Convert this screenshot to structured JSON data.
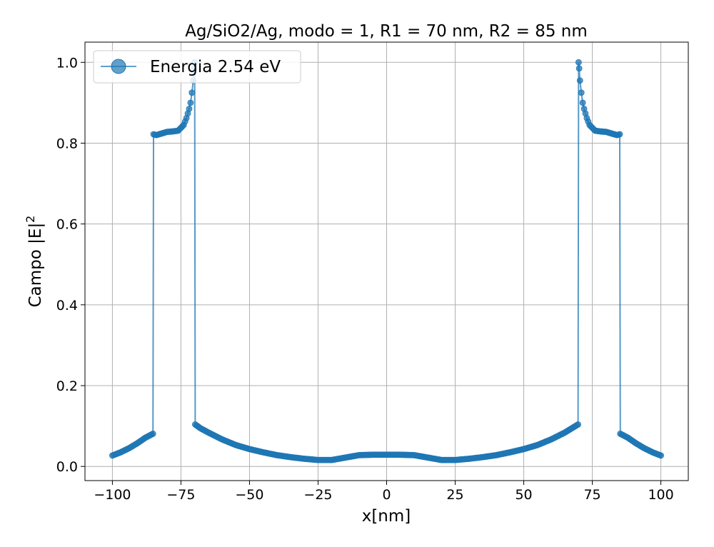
{
  "chart_data": {
    "type": "line",
    "title": "Ag/SiO2/Ag, modo = 1, R1 = 70 nm, R2 = 85 nm",
    "xlabel": "x[nm]",
    "ylabel": "Campo |E|",
    "ylabel_superscript": "2",
    "xlim": [
      -110,
      110
    ],
    "ylim": [
      -0.035,
      1.05
    ],
    "xticks": [
      -100,
      -75,
      -50,
      -25,
      0,
      25,
      50,
      75,
      100
    ],
    "xtick_labels": [
      "−100",
      "−75",
      "−50",
      "−25",
      "0",
      "25",
      "50",
      "75",
      "100"
    ],
    "yticks": [
      0.0,
      0.2,
      0.4,
      0.6,
      0.8,
      1.0
    ],
    "ytick_labels": [
      "0.0",
      "0.2",
      "0.4",
      "0.6",
      "0.8",
      "1.0"
    ],
    "grid": true,
    "legend_position": "top-left",
    "series": [
      {
        "name": "Energia 2.54 eV",
        "color": "#1f77b4",
        "marker": "circle",
        "x": [
          -100,
          -97,
          -94,
          -91,
          -88,
          -85.2,
          -85,
          -84,
          -82,
          -80,
          -78,
          -76,
          -74,
          -73,
          -72,
          -71.5,
          -71,
          -70.5,
          -70.2,
          -70,
          -69.8,
          -68,
          -65,
          -60,
          -55,
          -50,
          -45,
          -40,
          -35,
          -30,
          -25,
          -20,
          -15,
          -10,
          -5,
          0,
          5,
          10,
          15,
          20,
          25,
          30,
          35,
          40,
          45,
          50,
          55,
          60,
          65,
          69.8,
          70,
          70.2,
          70.5,
          71,
          71.5,
          72,
          73,
          74,
          76,
          78,
          80,
          82,
          84,
          85,
          85.2,
          88,
          91,
          94,
          97,
          100
        ],
        "y": [
          0.027,
          0.035,
          0.045,
          0.057,
          0.071,
          0.081,
          0.822,
          0.82,
          0.824,
          0.828,
          0.829,
          0.831,
          0.845,
          0.862,
          0.885,
          0.9,
          0.925,
          0.955,
          0.985,
          1.0,
          0.104,
          0.095,
          0.084,
          0.067,
          0.053,
          0.043,
          0.035,
          0.028,
          0.023,
          0.019,
          0.016,
          0.016,
          0.022,
          0.028,
          0.029,
          0.029,
          0.029,
          0.028,
          0.022,
          0.016,
          0.016,
          0.019,
          0.023,
          0.028,
          0.035,
          0.043,
          0.053,
          0.067,
          0.084,
          0.104,
          1.0,
          0.985,
          0.955,
          0.925,
          0.9,
          0.885,
          0.862,
          0.845,
          0.831,
          0.829,
          0.828,
          0.824,
          0.82,
          0.822,
          0.081,
          0.071,
          0.057,
          0.045,
          0.035,
          0.027
        ]
      }
    ]
  }
}
